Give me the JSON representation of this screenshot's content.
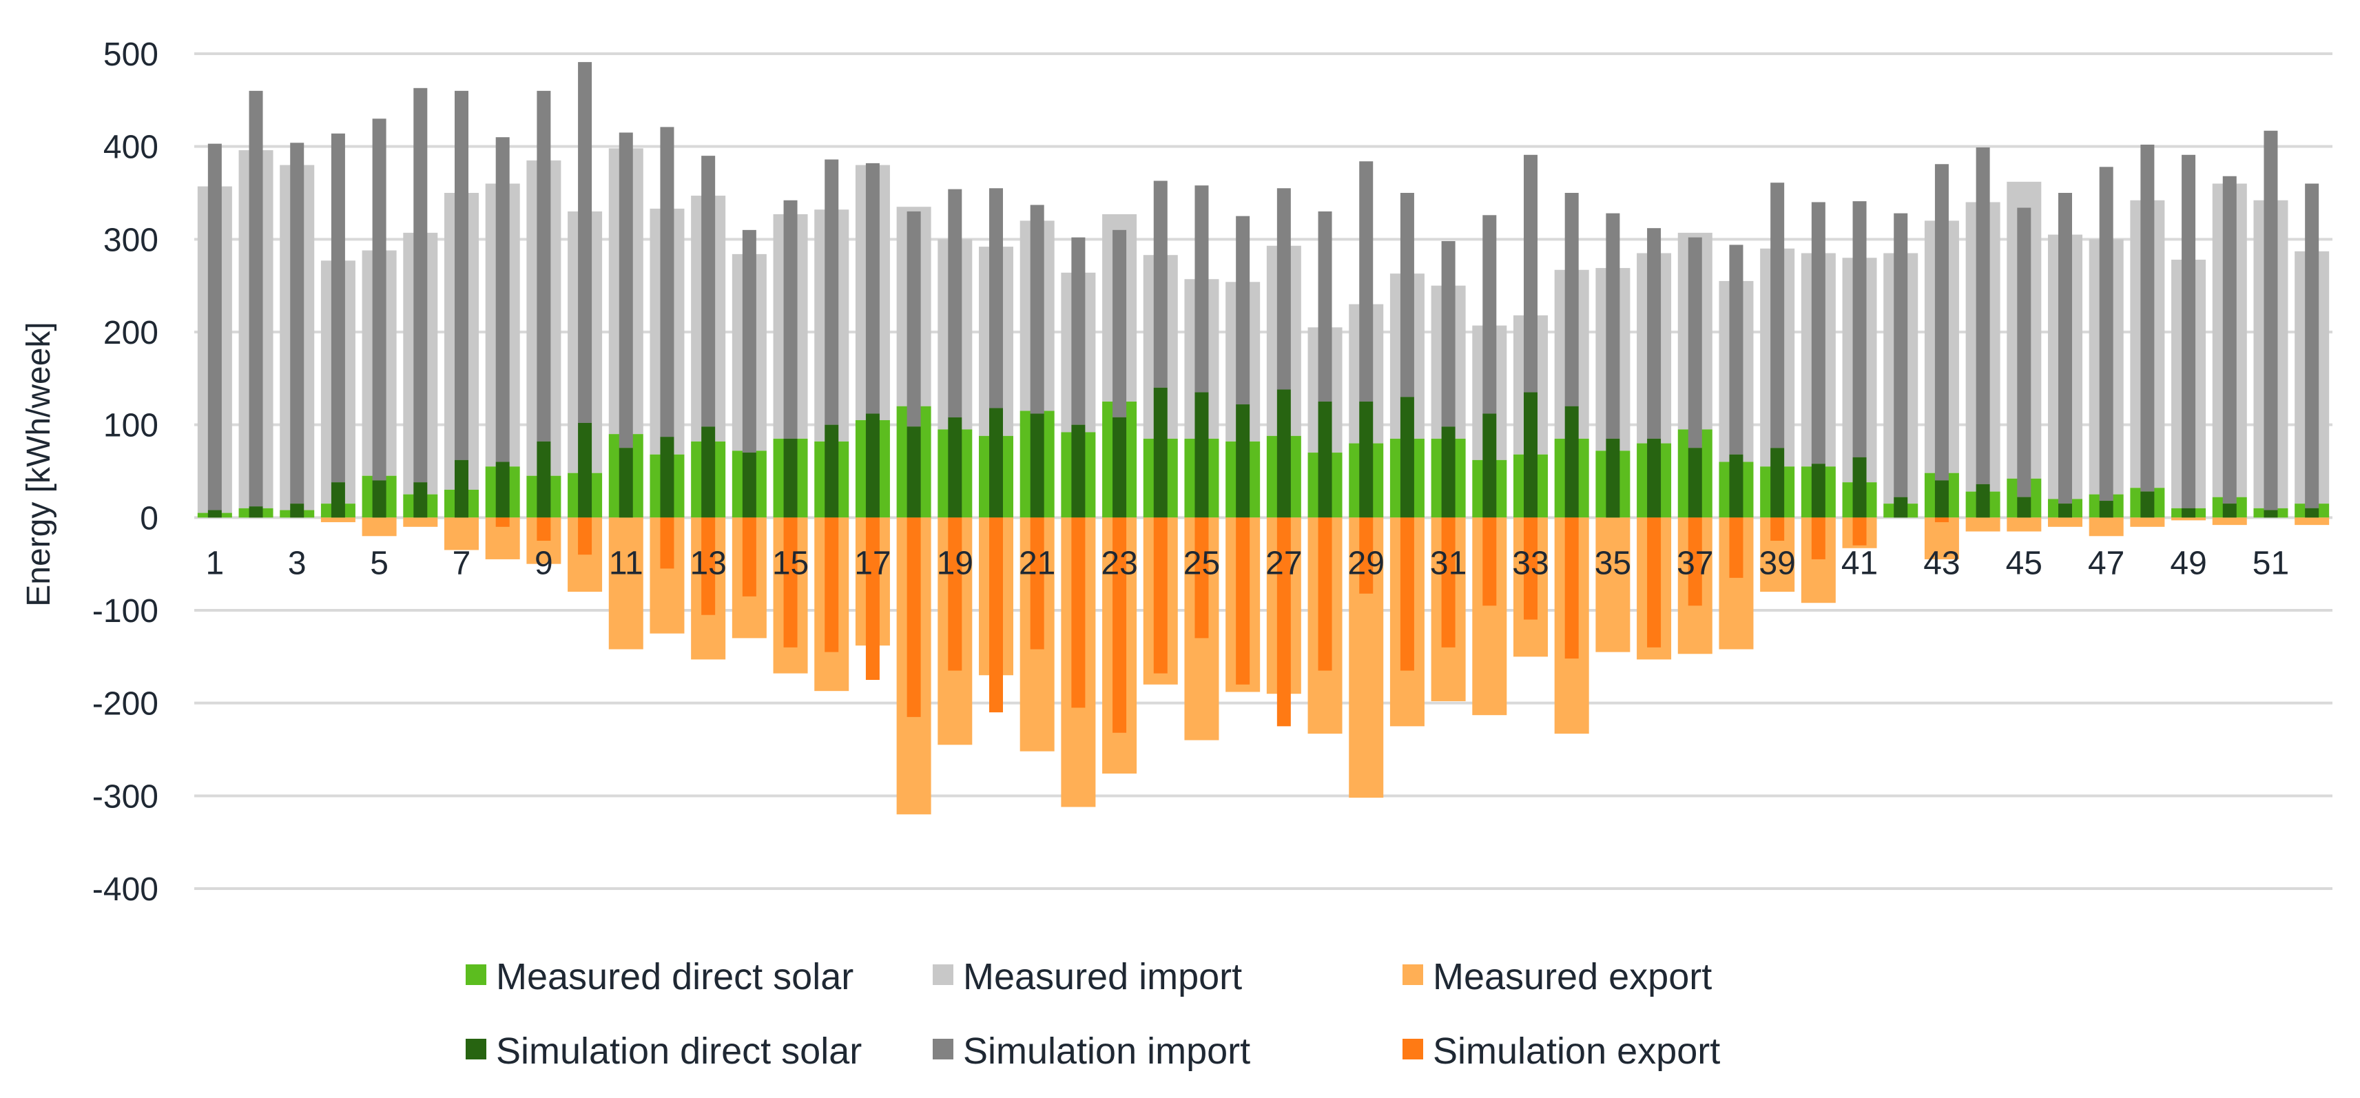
{
  "chart_data": {
    "type": "bar",
    "title": "",
    "xlabel": "",
    "ylabel": "Energy [kWh/week]",
    "ylim": [
      -400,
      500
    ],
    "yticks": [
      500,
      400,
      300,
      200,
      100,
      0,
      -100,
      -200,
      -300,
      -400
    ],
    "grid": true,
    "legend_position": "bottom",
    "categories": [
      1,
      2,
      3,
      4,
      5,
      6,
      7,
      8,
      9,
      10,
      11,
      12,
      13,
      14,
      15,
      16,
      17,
      18,
      19,
      20,
      21,
      22,
      23,
      24,
      25,
      26,
      27,
      28,
      29,
      30,
      31,
      32,
      33,
      34,
      35,
      36,
      37,
      38,
      39,
      40,
      41,
      42,
      43,
      44,
      45,
      46,
      47,
      48,
      49,
      50,
      51,
      52
    ],
    "x_tick_labels": [
      "1",
      "3",
      "5",
      "7",
      "9",
      "11",
      "13",
      "15",
      "17",
      "19",
      "21",
      "23",
      "25",
      "27",
      "29",
      "31",
      "33",
      "35",
      "37",
      "39",
      "41",
      "43",
      "45",
      "47",
      "49",
      "51"
    ],
    "colors": {
      "measured_direct_solar": "#5cbd1f",
      "measured_import": "#c8c8c8",
      "measured_export": "#ffaf55",
      "simulation_direct_solar": "#276411",
      "simulation_import": "#828282",
      "simulation_export": "#ff7a14"
    },
    "series": [
      {
        "key": "measured_direct_solar",
        "name": "Measured direct solar",
        "role": "measured",
        "stack": "positive",
        "values": [
          5,
          10,
          8,
          15,
          45,
          25,
          30,
          55,
          45,
          48,
          90,
          68,
          82,
          72,
          85,
          82,
          105,
          120,
          95,
          88,
          115,
          92,
          125,
          85,
          85,
          82,
          88,
          70,
          80,
          85,
          85,
          62,
          68,
          85,
          72,
          80,
          95,
          60,
          55,
          55,
          38,
          15,
          48,
          28,
          42,
          20,
          25,
          32,
          10,
          22,
          10,
          15
        ]
      },
      {
        "key": "measured_import",
        "name": "Measured import",
        "role": "measured",
        "stack": "positive",
        "values": [
          352,
          386,
          372,
          262,
          243,
          282,
          320,
          305,
          340,
          282,
          308,
          265,
          265,
          212,
          242,
          250,
          275,
          215,
          205,
          204,
          205,
          172,
          202,
          198,
          172,
          172,
          205,
          135,
          150,
          178,
          165,
          145,
          150,
          182,
          197,
          205,
          212,
          195,
          235,
          230,
          242,
          270,
          272,
          312,
          320,
          285,
          275,
          310,
          268,
          338,
          332,
          272
        ]
      },
      {
        "key": "measured_export",
        "name": "Measured export",
        "role": "measured",
        "stack": "negative",
        "values": [
          0,
          0,
          0,
          -5,
          -20,
          -10,
          -35,
          -45,
          -50,
          -80,
          -142,
          -125,
          -153,
          -130,
          -168,
          -187,
          -138,
          -320,
          -245,
          -170,
          -252,
          -312,
          -276,
          -180,
          -240,
          -188,
          -190,
          -233,
          -302,
          -225,
          -198,
          -213,
          -150,
          -233,
          -145,
          -153,
          -147,
          -142,
          -80,
          -92,
          -33,
          0,
          -45,
          -15,
          -15,
          -10,
          -20,
          -10,
          -3,
          -8,
          0,
          -8
        ]
      },
      {
        "key": "simulation_direct_solar",
        "name": "Simulation direct solar",
        "role": "simulation",
        "stack": "positive",
        "values": [
          8,
          12,
          15,
          38,
          40,
          38,
          62,
          60,
          82,
          102,
          75,
          87,
          98,
          70,
          85,
          100,
          112,
          98,
          108,
          118,
          112,
          100,
          108,
          140,
          135,
          122,
          138,
          125,
          125,
          130,
          98,
          112,
          135,
          120,
          85,
          85,
          75,
          68,
          75,
          58,
          65,
          22,
          40,
          36,
          22,
          15,
          18,
          28,
          10,
          15,
          8,
          10
        ]
      },
      {
        "key": "simulation_import",
        "name": "Simulation import",
        "role": "simulation",
        "stack": "positive",
        "values": [
          395,
          448,
          389,
          376,
          390,
          425,
          398,
          350,
          378,
          389,
          340,
          334,
          292,
          240,
          257,
          286,
          270,
          232,
          246,
          237,
          225,
          202,
          202,
          223,
          223,
          203,
          217,
          205,
          259,
          220,
          200,
          214,
          256,
          230,
          243,
          227,
          227,
          226,
          286,
          282,
          276,
          306,
          341,
          363,
          312,
          335,
          360,
          374,
          381,
          353,
          409,
          350
        ]
      },
      {
        "key": "simulation_export",
        "name": "Simulation export",
        "role": "simulation",
        "stack": "negative",
        "values": [
          0,
          0,
          0,
          0,
          0,
          0,
          0,
          -10,
          -25,
          -40,
          0,
          -55,
          -105,
          -85,
          -140,
          -145,
          -175,
          -215,
          -165,
          -210,
          -142,
          -205,
          -232,
          -168,
          -130,
          -180,
          -225,
          -165,
          -82,
          -165,
          -140,
          -95,
          -110,
          -152,
          0,
          -140,
          -95,
          -65,
          -25,
          -45,
          -30,
          0,
          -5,
          0,
          0,
          0,
          0,
          0,
          0,
          0,
          0,
          0
        ]
      }
    ]
  }
}
